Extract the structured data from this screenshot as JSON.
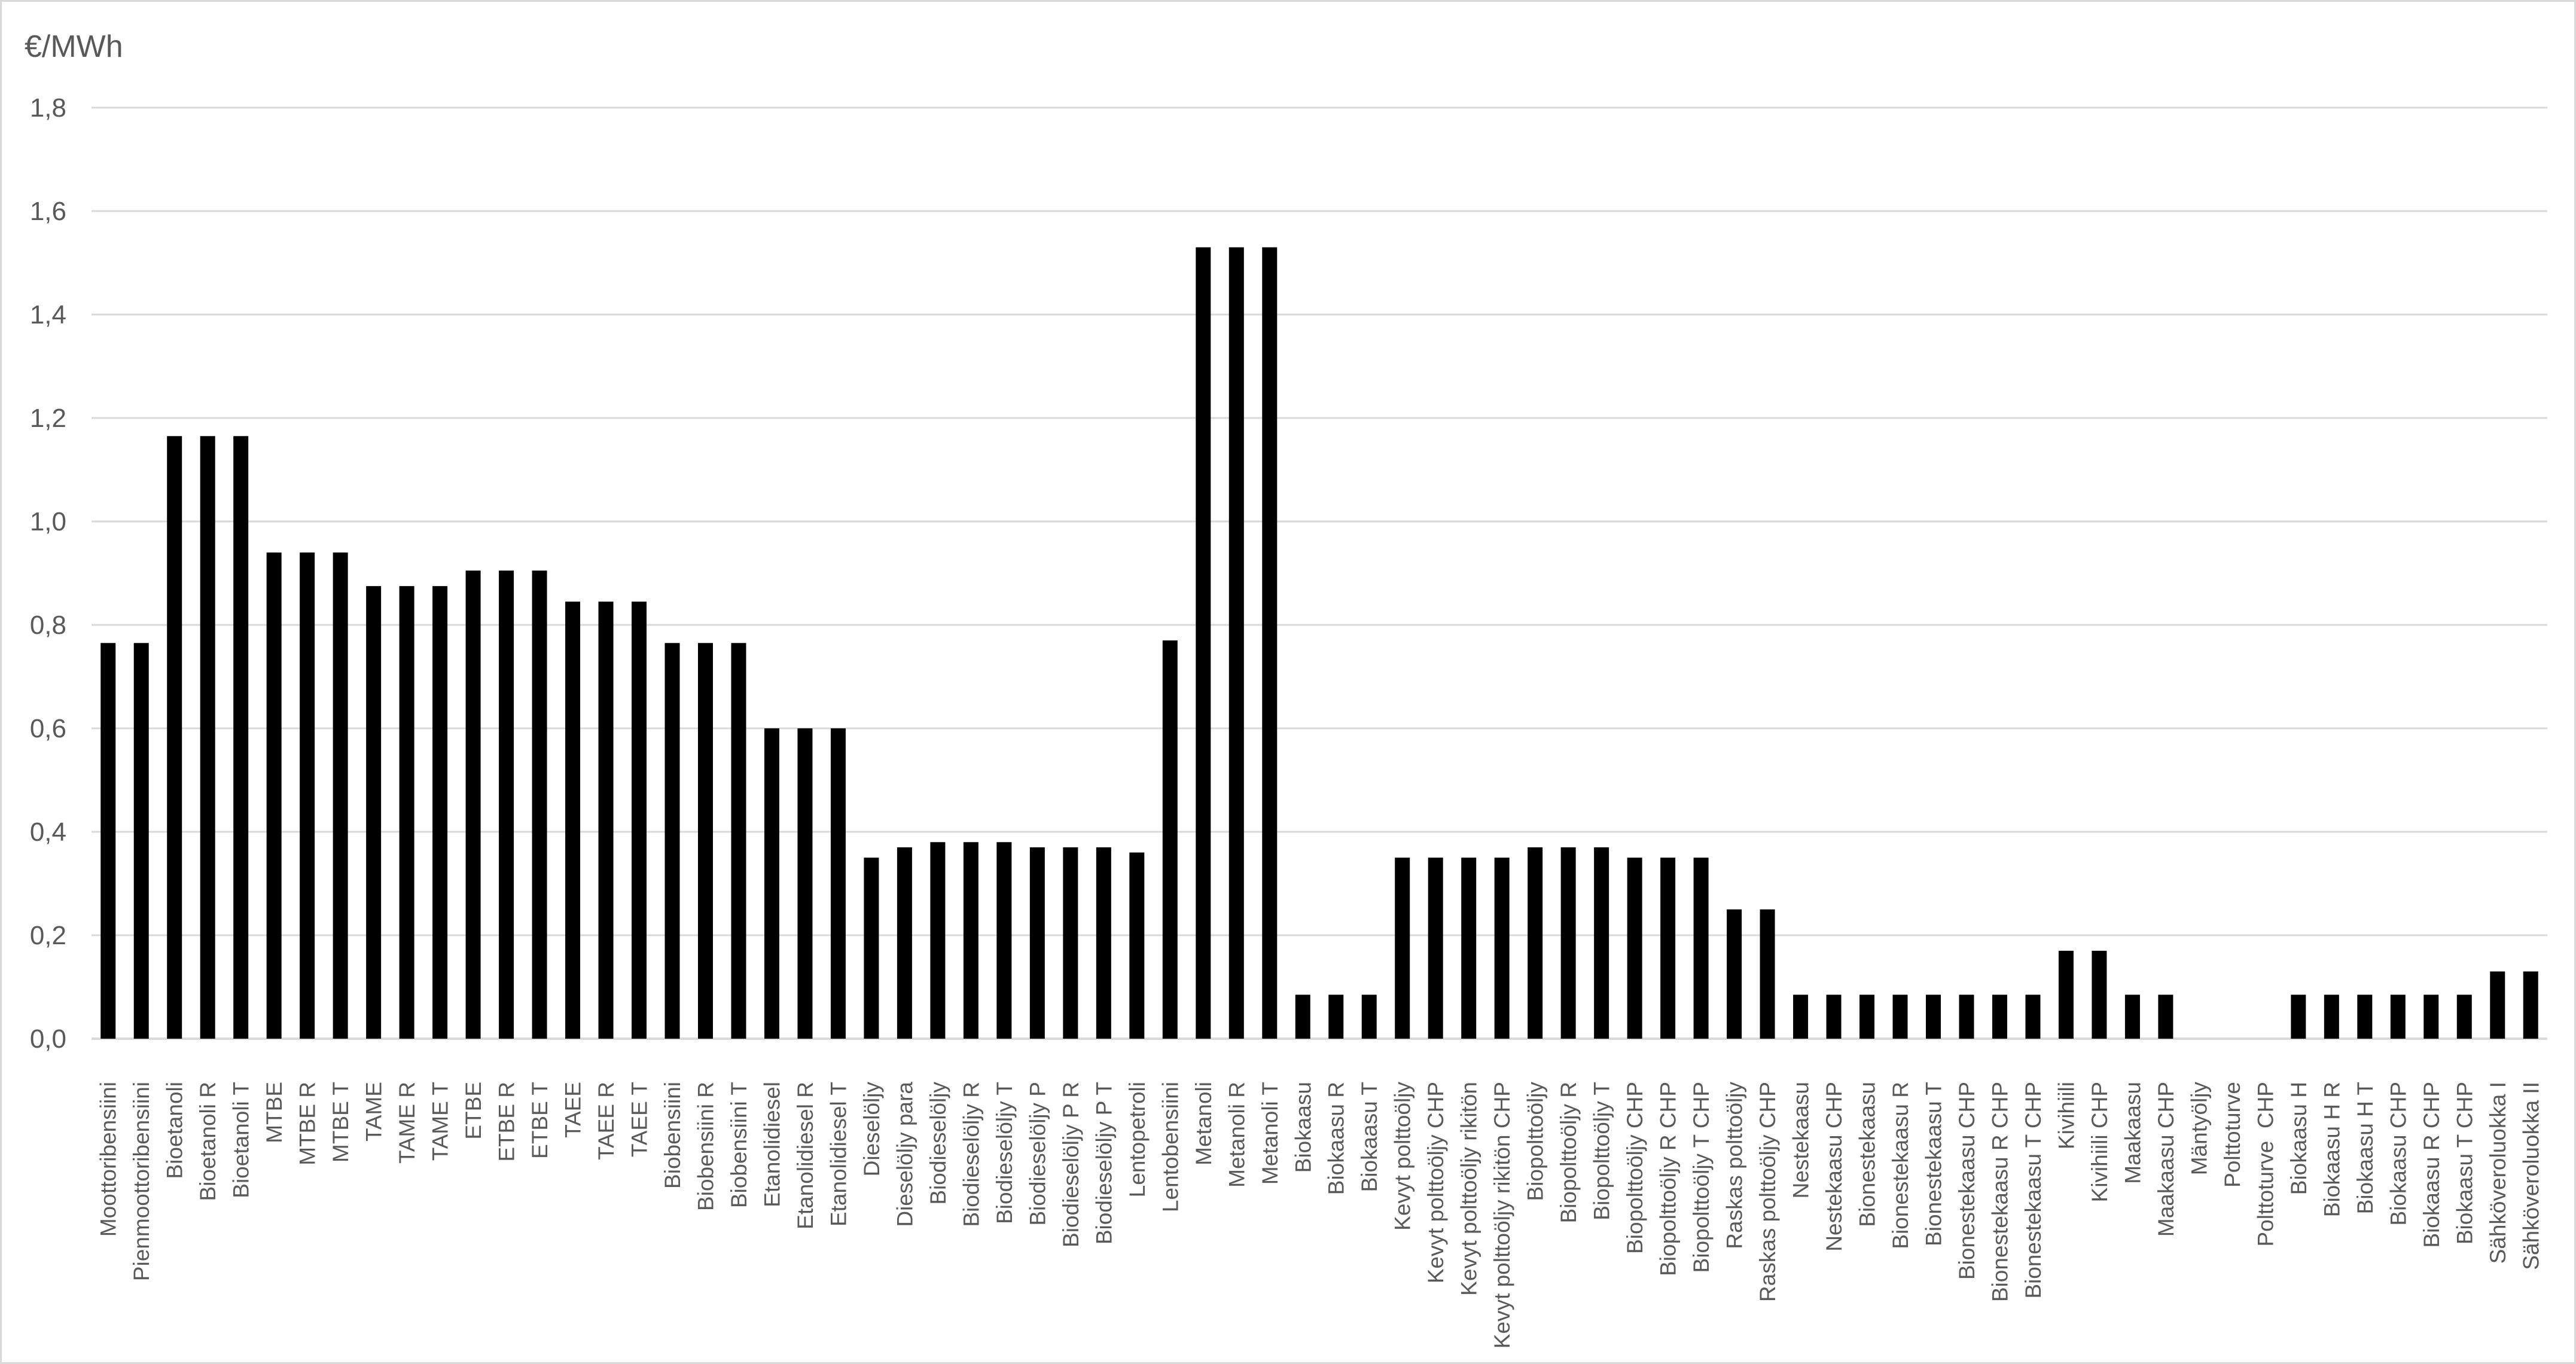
{
  "chart_data": {
    "type": "bar",
    "title": "",
    "ylabel": "€/MWh",
    "xlabel": "",
    "ylim": [
      0,
      1.8
    ],
    "yticks": [
      "0,0",
      "0,2",
      "0,4",
      "0,6",
      "0,8",
      "1,0",
      "1,2",
      "1,4",
      "1,6",
      "1,8"
    ],
    "grid": true,
    "legend": "none",
    "bar_color": "#000000",
    "grid_color": "#d9d9d9",
    "categories": [
      "Moottoribensiini",
      "Pienmoottoribensiini",
      "Bioetanoli",
      "Bioetanoli R",
      "Bioetanoli T",
      "MTBE",
      "MTBE R",
      "MTBE T",
      "TAME",
      "TAME R",
      "TAME T",
      "ETBE",
      "ETBE R",
      "ETBE T",
      "TAEE",
      "TAEE R",
      "TAEE T",
      "Biobensiini",
      "Biobensiini R",
      "Biobensiini T",
      "Etanolidiesel",
      "Etanolidiesel R",
      "Etanolidiesel T",
      "Dieselöljy",
      "Dieselöljy para",
      "Biodieselöljy",
      "Biodieselöljy R",
      "Biodieselöljy T",
      "Biodieselöljy P",
      "Biodieselöljy P R",
      "Biodieselöljy P T",
      "Lentopetroli",
      "Lentobensiini",
      "Metanoli",
      "Metanoli R",
      "Metanoli T",
      "Biokaasu",
      "Biokaasu R",
      "Biokaasu T",
      "Kevyt polttoöljy",
      "Kevyt polttoöljy CHP",
      "Kevyt polttoöljy rikitön",
      "Kevyt polttoöljy rikitön CHP",
      "Biopolttoöljy",
      "Biopolttoöljy R",
      "Biopolttoöljy T",
      "Biopolttoöljy CHP",
      "Biopolttoöljy R CHP",
      "Biopolttoöljy T CHP",
      "Raskas polttoöljy",
      "Raskas polttoöljy CHP",
      "Nestekaasu",
      "Nestekaasu CHP",
      "Bionestekaasu",
      "Bionestekaasu R",
      "Bionestekaasu T",
      "Bionestekaasu CHP",
      "Bionestekaasu R CHP",
      "Bionestekaasu T CHP",
      "Kivihiili",
      "Kivihiili CHP",
      "Maakaasu",
      "Maakaasu CHP",
      "Mäntyöljy",
      "Polttoturve",
      "Polttoturve  CHP",
      "Biokaasu H",
      "Biokaasu H R",
      "Biokaasu H T",
      "Biokaasu CHP",
      "Biokaasu R CHP",
      "Biokaasu T CHP",
      "Sähköveroluokka I",
      "Sähköveroluokka II"
    ],
    "values": [
      0.765,
      0.765,
      1.165,
      1.165,
      1.165,
      0.94,
      0.94,
      0.94,
      0.875,
      0.875,
      0.875,
      0.905,
      0.905,
      0.905,
      0.845,
      0.845,
      0.845,
      0.765,
      0.765,
      0.765,
      0.6,
      0.6,
      0.6,
      0.35,
      0.37,
      0.38,
      0.38,
      0.38,
      0.37,
      0.37,
      0.37,
      0.36,
      0.77,
      1.53,
      1.53,
      1.53,
      0.085,
      0.085,
      0.085,
      0.35,
      0.35,
      0.35,
      0.35,
      0.37,
      0.37,
      0.37,
      0.35,
      0.35,
      0.35,
      0.25,
      0.25,
      0.085,
      0.085,
      0.085,
      0.085,
      0.085,
      0.085,
      0.085,
      0.085,
      0.17,
      0.17,
      0.085,
      0.085,
      0,
      0,
      0,
      0.085,
      0.085,
      0.085,
      0.085,
      0.085,
      0.085,
      0.13,
      0.13
    ]
  }
}
